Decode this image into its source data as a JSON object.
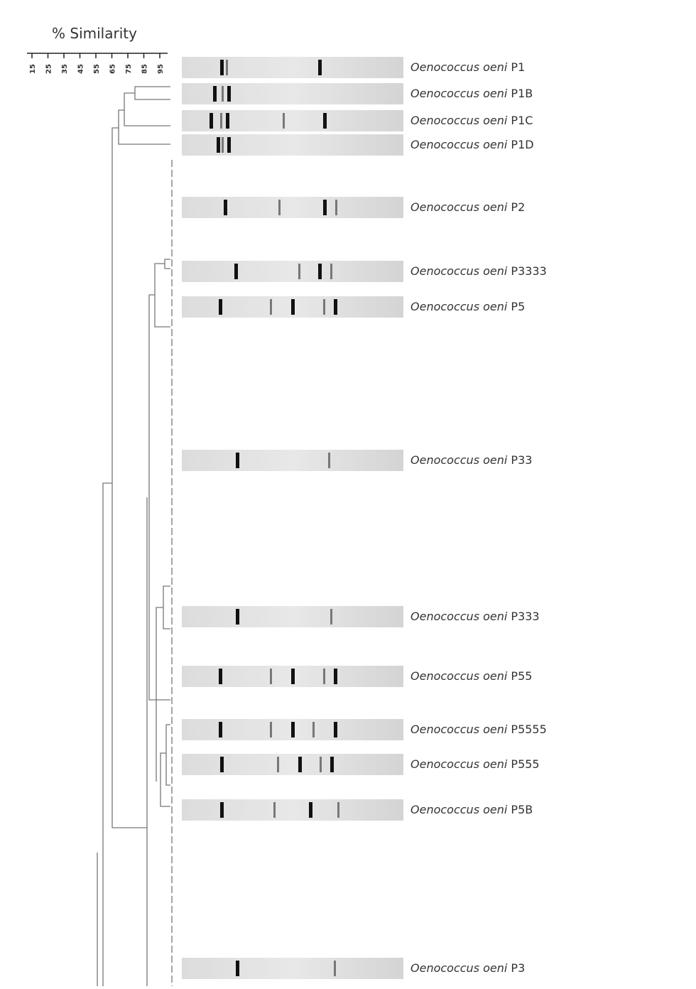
{
  "scale": {
    "label": "% Similarity",
    "ticks": [
      15,
      25,
      35,
      45,
      55,
      65,
      75,
      85,
      95
    ]
  },
  "taxa": [
    {
      "species": "Oenococcus oeni",
      "strain": "P1"
    },
    {
      "species": "Oenococcus oeni",
      "strain": "P1B"
    },
    {
      "species": "Oenococcus oeni",
      "strain": "P1C"
    },
    {
      "species": "Oenococcus oeni",
      "strain": "P1D"
    },
    {
      "species": "Oenococcus oeni",
      "strain": "P2"
    },
    {
      "species": "Oenococcus oeni",
      "strain": "P3333"
    },
    {
      "species": "Oenococcus oeni",
      "strain": "P5"
    },
    {
      "species": "Oenococcus oeni",
      "strain": "P33"
    },
    {
      "species": "Oenococcus oeni",
      "strain": "P333"
    },
    {
      "species": "Oenococcus oeni",
      "strain": "P55"
    },
    {
      "species": "Oenococcus oeni",
      "strain": "P5555"
    },
    {
      "species": "Oenococcus oeni",
      "strain": "P555"
    },
    {
      "species": "Oenococcus oeni",
      "strain": "P5B"
    },
    {
      "species": "Oenococcus oeni",
      "strain": "P3"
    }
  ]
}
